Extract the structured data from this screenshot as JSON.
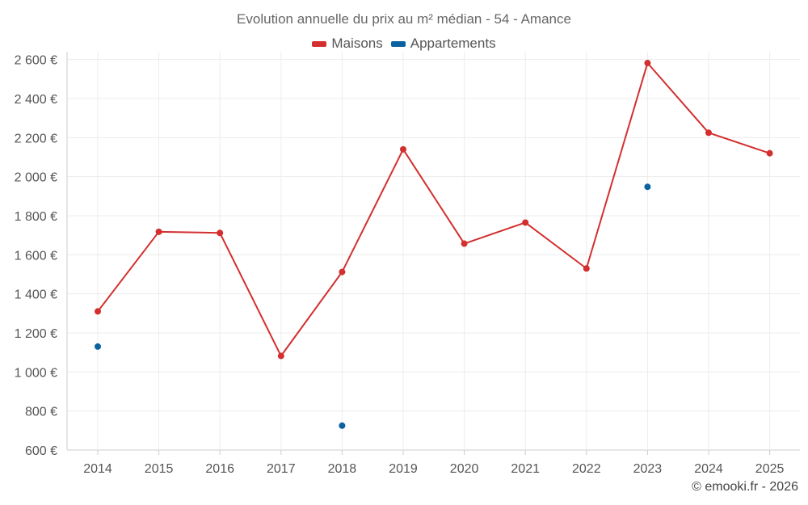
{
  "chart_data": {
    "type": "line",
    "title": "Evolution annuelle du prix au m² médian - 54 - Amance",
    "categories": [
      "2014",
      "2015",
      "2016",
      "2017",
      "2018",
      "2019",
      "2020",
      "2021",
      "2022",
      "2023",
      "2024",
      "2025"
    ],
    "series": [
      {
        "name": "Maisons",
        "color": "#d32f2f",
        "mode": "lines+markers",
        "values": [
          1310,
          1718,
          1712,
          1082,
          1512,
          2140,
          1657,
          1765,
          1530,
          2582,
          2225,
          2120
        ]
      },
      {
        "name": "Appartements",
        "color": "#0b62a0",
        "mode": "markers",
        "values": [
          1130,
          null,
          null,
          null,
          725,
          null,
          null,
          null,
          null,
          1948,
          null,
          null
        ]
      }
    ],
    "ylim": [
      600,
      2640
    ],
    "yticks": [
      600,
      800,
      1000,
      1200,
      1400,
      1600,
      1800,
      2000,
      2200,
      2400,
      2600
    ],
    "ytick_labels": [
      "600 €",
      "800 €",
      "1 000 €",
      "1 200 €",
      "1 400 €",
      "1 600 €",
      "1 800 €",
      "2 000 €",
      "2 200 €",
      "2 400 €",
      "2 600 €"
    ],
    "xlabel": "",
    "ylabel": "",
    "grid": true,
    "legend_position": "top-center"
  },
  "credit": "© emooki.fr - 2026"
}
